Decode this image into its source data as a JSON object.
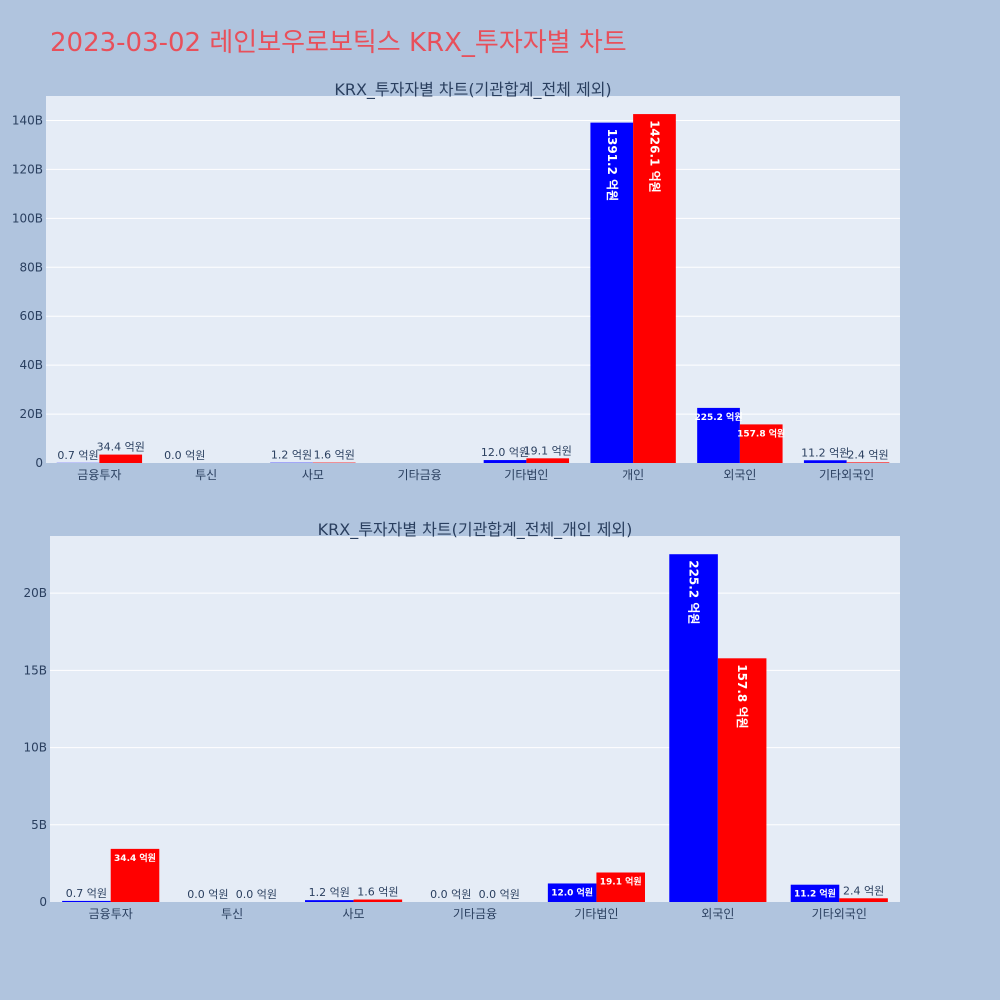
{
  "page_title": "2023-03-02 레인보우로보틱스 KRX_투자자별 차트",
  "colors": {
    "buy": "#0000ff",
    "sell": "#ff0000",
    "plot_bg": "#e5ecf6",
    "page_bg": "#b0c4de",
    "title": "#e8505b"
  },
  "chart_data": [
    {
      "type": "bar",
      "title": "KRX_투자자별 차트(기관합계_전체 제외)",
      "categories": [
        "금융투자",
        "투신",
        "사모",
        "기타금융",
        "기타법인",
        "개인",
        "외국인",
        "기타외국인"
      ],
      "series": [
        {
          "values": [
            0.07,
            0.0,
            0.12,
            0.0,
            1.2,
            139.12,
            22.52,
            1.12
          ],
          "labels": [
            "0.7 억원",
            "0.0 억원",
            "1.2 억원",
            "",
            "12.0 억원",
            "1391.2 억원",
            "225.2 억원",
            "11.2 억원"
          ]
        },
        {
          "values": [
            3.44,
            0.0,
            0.16,
            0.0,
            1.91,
            142.61,
            15.78,
            0.24
          ],
          "labels": [
            "34.4 억원",
            "",
            "1.6 억원",
            "",
            "19.1 억원",
            "1426.1 억원",
            "157.8 억원",
            "2.4 억원"
          ]
        }
      ],
      "ylim": [
        0,
        150
      ],
      "yticks": [
        "0",
        "20B",
        "40B",
        "60B",
        "80B",
        "100B",
        "120B",
        "140B"
      ],
      "ytick_values": [
        0,
        20,
        40,
        60,
        80,
        100,
        120,
        140
      ]
    },
    {
      "type": "bar",
      "title": "KRX_투자자별 차트(기관합계_전체_개인 제외)",
      "categories": [
        "금융투자",
        "투신",
        "사모",
        "기타금융",
        "기타법인",
        "외국인",
        "기타외국인"
      ],
      "series": [
        {
          "values": [
            0.07,
            0.0,
            0.12,
            0.0,
            1.2,
            22.52,
            1.12
          ],
          "labels": [
            "0.7 억원",
            "0.0 억원",
            "1.2 억원",
            "0.0 억원",
            "12.0 억원",
            "225.2 억원",
            "11.2 억원"
          ]
        },
        {
          "values": [
            3.44,
            0.0,
            0.16,
            0.0,
            1.91,
            15.78,
            0.24
          ],
          "labels": [
            "34.4 억원",
            "0.0 억원",
            "1.6 억원",
            "0.0 억원",
            "19.1 억원",
            "157.8 억원",
            "2.4 억원"
          ]
        }
      ],
      "ylim": [
        0,
        23.7
      ],
      "yticks": [
        "0",
        "5B",
        "10B",
        "15B",
        "20B"
      ],
      "ytick_values": [
        0,
        5,
        10,
        15,
        20
      ]
    }
  ]
}
